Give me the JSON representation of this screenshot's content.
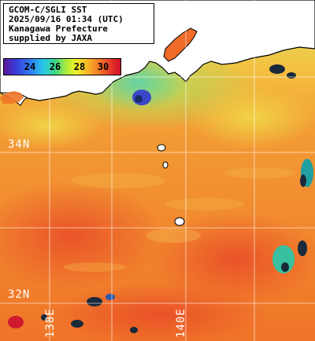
{
  "title_block": {
    "line1": "GCOM-C/SGLI SST",
    "line2": "2025/09/16 01:34 (UTC)",
    "line3": "Kanagawa Prefecture",
    "line4": "supplied by JAXA"
  },
  "colorbar": {
    "ticks": [
      "24",
      "26",
      "28",
      "30"
    ],
    "gradient_colors": [
      "#5a1a9a",
      "#3a3ad8",
      "#2f7af0",
      "#28c8e8",
      "#3ad88a",
      "#b4ec3a",
      "#f0f028",
      "#f8b428",
      "#f06a28",
      "#e02a28",
      "#d01028"
    ]
  },
  "grid_labels": {
    "lat_34": "34N",
    "lat_32": "32N",
    "lon_138": "138E",
    "lon_140": "140E"
  },
  "colors": {
    "sea_warm": "#f07a2a",
    "sea_cool": "#f0c040",
    "land": "#ffffff",
    "coast": "#000000",
    "grid": "#ffffff",
    "cloud": "#1a2a3a"
  }
}
